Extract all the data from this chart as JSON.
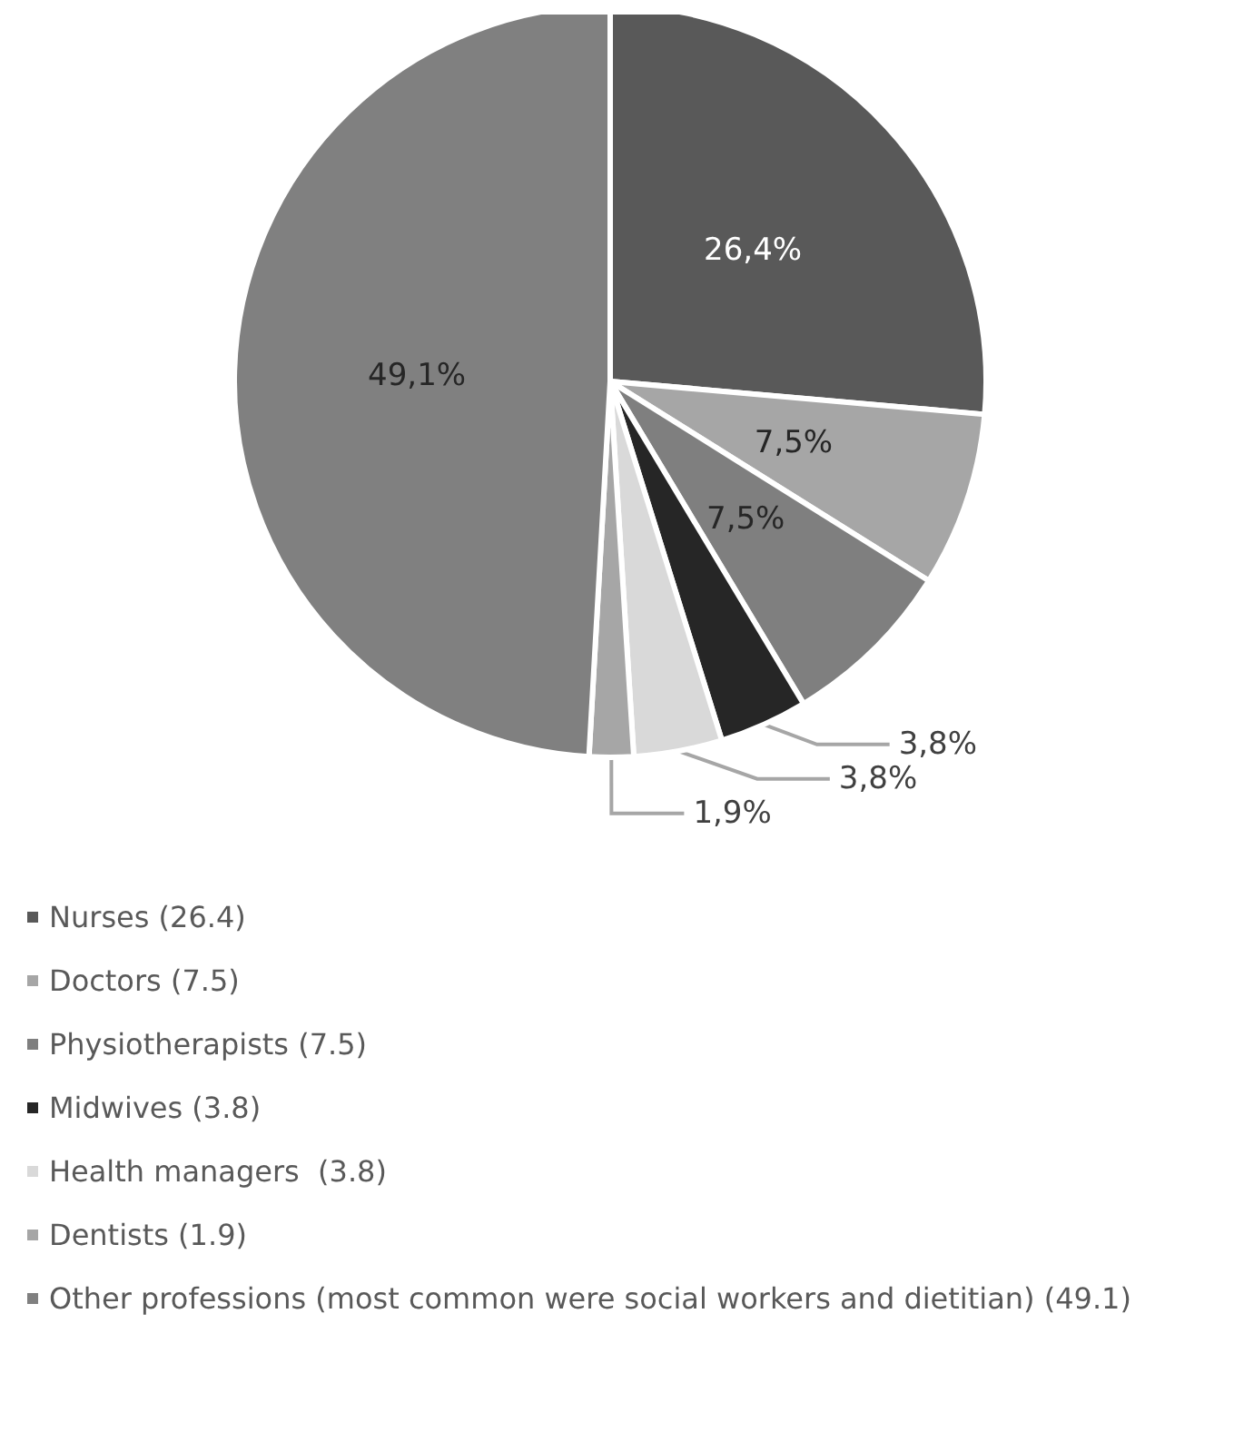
{
  "chart_data": {
    "type": "pie",
    "categories": [
      "Nurses (26.4)",
      "Doctors (7.5)",
      "Physiotherapists (7.5)",
      "Midwives (3.8)",
      "Health managers  (3.8)",
      "Dentists (1.9)",
      "Other professions (most common were social workers and dietitian) (49.1)"
    ],
    "values": [
      26.4,
      7.5,
      7.5,
      3.8,
      3.8,
      1.9,
      49.1
    ],
    "colors": [
      "#595959",
      "#a6a6a6",
      "#7f7f7f",
      "#262626",
      "#d9d9d9",
      "#a6a6a6",
      "#808080"
    ],
    "value_labels": [
      "26,4%",
      "7,5%",
      "7,5%",
      "3,8%",
      "3,8%",
      "1,9%",
      "49,1%"
    ],
    "legend": "bottom left"
  }
}
